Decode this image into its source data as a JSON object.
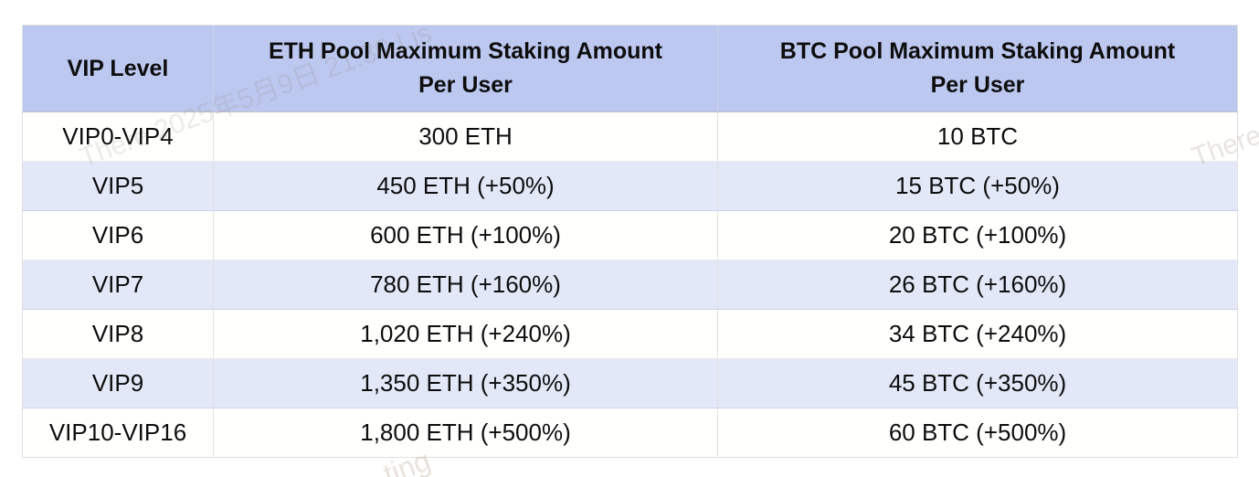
{
  "table": {
    "headers": [
      {
        "lines": [
          "VIP Level"
        ]
      },
      {
        "lines": [
          "ETH Pool Maximum Staking Amount",
          "Per User"
        ]
      },
      {
        "lines": [
          "BTC Pool Maximum Staking Amount",
          "Per User"
        ]
      }
    ],
    "rows": [
      {
        "vip": "VIP0-VIP4",
        "eth": "300 ETH",
        "btc": "10 BTC"
      },
      {
        "vip": "VIP5",
        "eth": "450 ETH (+50%)",
        "btc": "15 BTC (+50%)"
      },
      {
        "vip": "VIP6",
        "eth": "600 ETH (+100%)",
        "btc": "20 BTC (+100%)"
      },
      {
        "vip": "VIP7",
        "eth": "780 ETH (+160%)",
        "btc": "26 BTC (+160%)"
      },
      {
        "vip": "VIP8",
        "eth": "1,020 ETH (+240%)",
        "btc": "34 BTC (+240%)"
      },
      {
        "vip": "VIP9",
        "eth": "1,350 ETH (+350%)",
        "btc": "45 BTC (+350%)"
      },
      {
        "vip": "VIP10-VIP16",
        "eth": "1,800 ETH (+500%)",
        "btc": "60 BTC (+500%)"
      }
    ]
  },
  "watermark": {
    "diagonal_line": "There 2025年5月9日 21:30 Lis",
    "right_fragment": "There",
    "bottom_fragment": "ting"
  },
  "colors": {
    "header_bg": "#bdc8f0",
    "row_alt_bg": "#e3e8f8",
    "row_bg": "#ffffff",
    "cell_divider": "#e2e2e2",
    "alt_row_border": "#ccd3ea",
    "header_border": "#bfbfbf",
    "outer_border": "#e0e0e0",
    "text": "#0d0d0d"
  }
}
